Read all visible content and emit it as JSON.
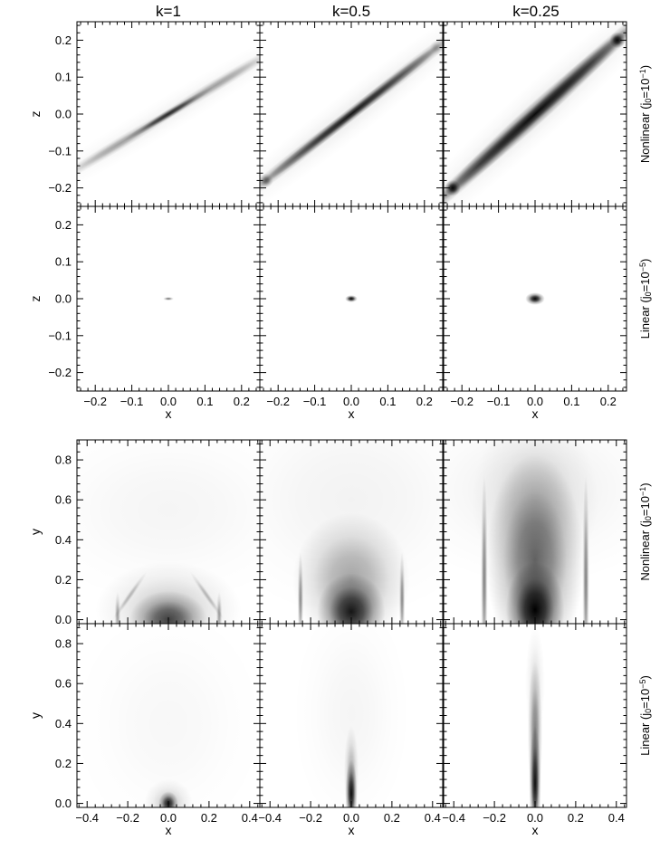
{
  "columns": [
    "k=1",
    "k=0.5",
    "k=0.25"
  ],
  "colors": {
    "ink": "#000000",
    "background": "#ffffff"
  },
  "row_labels": {
    "nonlinear": [
      "Nonlinear (j",
      "0",
      "=10",
      "−1",
      ")"
    ],
    "linear": [
      "Linear (j",
      "0",
      "=10",
      "−5",
      ")"
    ]
  },
  "chart_data": [
    {
      "type": "heatmap",
      "group": "x-z plane",
      "xlabel": "x",
      "ylabel": "z",
      "xlim": [
        -0.25,
        0.25
      ],
      "ylim": [
        -0.25,
        0.25
      ],
      "xticks": [
        -0.2,
        -0.1,
        0.0,
        0.1,
        0.2
      ],
      "xtick_labels": [
        "−0.2",
        "−0.1",
        "0.0",
        "0.1",
        "0.2"
      ],
      "yticks": [
        -0.2,
        -0.1,
        0.0,
        0.1,
        0.2
      ],
      "ytick_labels": [
        "−0.2",
        "−0.1",
        "0.0",
        "0.1",
        "0.2"
      ],
      "colormap": "white-to-black (grayscale)",
      "grid": false,
      "rows": [
        {
          "label_key": "nonlinear",
          "panels": [
            {
              "column": "k=1",
              "feature": "thin dark diagonal sheet along z = 0.6x, densest near origin",
              "blobs": [
                {
                  "x": -0.13,
                  "y": -0.078,
                  "sx": 0.1,
                  "sy": 0.007,
                  "angle": 31,
                  "amp": 0.35
                },
                {
                  "x": 0.0,
                  "y": 0.0,
                  "sx": 0.06,
                  "sy": 0.0045,
                  "angle": 31,
                  "amp": 0.8
                },
                {
                  "x": 0.13,
                  "y": 0.078,
                  "sx": 0.1,
                  "sy": 0.007,
                  "angle": 31,
                  "amp": 0.35
                },
                {
                  "x": 0.0,
                  "y": 0.0,
                  "sx": 0.24,
                  "sy": 0.02,
                  "angle": 31,
                  "amp": 0.05
                }
              ]
            },
            {
              "column": "k=0.5",
              "feature": "dark diagonal sheet reaching the box corners",
              "blobs": [
                {
                  "x": 0.0,
                  "y": 0.0,
                  "sx": 0.13,
                  "sy": 0.007,
                  "angle": 38,
                  "amp": 0.9
                },
                {
                  "x": -0.15,
                  "y": -0.115,
                  "sx": 0.1,
                  "sy": 0.008,
                  "angle": 38,
                  "amp": 0.45
                },
                {
                  "x": 0.15,
                  "y": 0.115,
                  "sx": 0.1,
                  "sy": 0.008,
                  "angle": 38,
                  "amp": 0.45
                },
                {
                  "x": -0.233,
                  "y": -0.18,
                  "sx": 0.008,
                  "sy": 0.008,
                  "angle": 0,
                  "amp": 0.5
                },
                {
                  "x": 0.233,
                  "y": 0.18,
                  "sx": 0.008,
                  "sy": 0.008,
                  "angle": 0,
                  "amp": 0.2
                },
                {
                  "x": 0.0,
                  "y": 0.0,
                  "sx": 0.24,
                  "sy": 0.025,
                  "angle": 38,
                  "amp": 0.07
                }
              ]
            },
            {
              "column": "k=0.25",
              "feature": "thick dark diagonal band with dark spots at both corners",
              "blobs": [
                {
                  "x": 0.0,
                  "y": 0.0,
                  "sx": 0.15,
                  "sy": 0.012,
                  "angle": 42,
                  "amp": 0.95
                },
                {
                  "x": -0.15,
                  "y": -0.135,
                  "sx": 0.11,
                  "sy": 0.01,
                  "angle": 42,
                  "amp": 0.6
                },
                {
                  "x": 0.15,
                  "y": 0.135,
                  "sx": 0.11,
                  "sy": 0.01,
                  "angle": 42,
                  "amp": 0.6
                },
                {
                  "x": -0.225,
                  "y": -0.2,
                  "sx": 0.009,
                  "sy": 0.009,
                  "angle": 0,
                  "amp": 0.95
                },
                {
                  "x": 0.225,
                  "y": 0.2,
                  "sx": 0.009,
                  "sy": 0.009,
                  "angle": 0,
                  "amp": 0.95
                },
                {
                  "x": 0.0,
                  "y": 0.0,
                  "sx": 0.26,
                  "sy": 0.03,
                  "angle": 42,
                  "amp": 0.08
                }
              ]
            }
          ]
        },
        {
          "label_key": "linear",
          "panels": [
            {
              "column": "k=1",
              "feature": "tiny faint spot at origin",
              "blobs": [
                {
                  "x": 0.0,
                  "y": 0.0,
                  "sx": 0.006,
                  "sy": 0.002,
                  "angle": 0,
                  "amp": 0.55
                }
              ]
            },
            {
              "column": "k=0.5",
              "feature": "small dark spot at origin",
              "blobs": [
                {
                  "x": 0.0,
                  "y": 0.0,
                  "sx": 0.007,
                  "sy": 0.004,
                  "angle": 0,
                  "amp": 1.0
                }
              ]
            },
            {
              "column": "k=0.25",
              "feature": "larger dark spot at origin",
              "blobs": [
                {
                  "x": 0.0,
                  "y": 0.0,
                  "sx": 0.011,
                  "sy": 0.007,
                  "angle": 0,
                  "amp": 1.0
                }
              ]
            }
          ]
        }
      ]
    },
    {
      "type": "heatmap",
      "group": "x-y plane",
      "xlabel": "x",
      "ylabel": "y",
      "xlim": [
        -0.45,
        0.45
      ],
      "ylim": [
        -0.02,
        0.9
      ],
      "xticks": [
        -0.4,
        -0.2,
        0.0,
        0.2,
        0.4
      ],
      "xtick_labels": [
        "−0.4",
        "−0.2",
        "0.0",
        "0.2",
        "0.4"
      ],
      "yticks": [
        0.0,
        0.2,
        0.4,
        0.6,
        0.8
      ],
      "ytick_labels": [
        "0.0",
        "0.2",
        "0.4",
        "0.6",
        "0.8"
      ],
      "colormap": "white-to-black (grayscale)",
      "grid": false,
      "rows": [
        {
          "label_key": "nonlinear",
          "panels": [
            {
              "column": "k=1",
              "feature": "dome-shaped dark region at base with faint arc outline",
              "blobs": [
                {
                  "x": 0.0,
                  "y": 0.0,
                  "sx": 0.08,
                  "sy": 0.06,
                  "angle": 0,
                  "amp": 0.7
                },
                {
                  "x": 0.0,
                  "y": 0.05,
                  "sx": 0.15,
                  "sy": 0.1,
                  "angle": 0,
                  "amp": 0.2
                },
                {
                  "x": -0.25,
                  "y": 0.02,
                  "sx": 0.006,
                  "sy": 0.05,
                  "angle": 0,
                  "amp": 0.35
                },
                {
                  "x": 0.25,
                  "y": 0.02,
                  "sx": 0.006,
                  "sy": 0.05,
                  "angle": 0,
                  "amp": 0.35
                },
                {
                  "x": -0.19,
                  "y": 0.12,
                  "sx": 0.06,
                  "sy": 0.006,
                  "angle": 55,
                  "amp": 0.25
                },
                {
                  "x": 0.19,
                  "y": 0.12,
                  "sx": 0.06,
                  "sy": 0.006,
                  "angle": -55,
                  "amp": 0.25
                },
                {
                  "x": 0.0,
                  "y": 0.55,
                  "sx": 0.3,
                  "sy": 0.2,
                  "angle": 0,
                  "amp": 0.04
                }
              ]
            },
            {
              "column": "k=0.5",
              "feature": "dark core at base, gray plume, arched streaks near x = ±0.25",
              "blobs": [
                {
                  "x": 0.0,
                  "y": 0.04,
                  "sx": 0.07,
                  "sy": 0.08,
                  "angle": 0,
                  "amp": 0.9
                },
                {
                  "x": 0.0,
                  "y": 0.2,
                  "sx": 0.12,
                  "sy": 0.14,
                  "angle": 0,
                  "amp": 0.35
                },
                {
                  "x": -0.25,
                  "y": 0.1,
                  "sx": 0.006,
                  "sy": 0.1,
                  "angle": 0,
                  "amp": 0.45
                },
                {
                  "x": 0.25,
                  "y": 0.1,
                  "sx": 0.006,
                  "sy": 0.1,
                  "angle": 0,
                  "amp": 0.45
                },
                {
                  "x": 0.0,
                  "y": 0.6,
                  "sx": 0.3,
                  "sy": 0.25,
                  "angle": 0,
                  "amp": 0.05
                }
              ]
            },
            {
              "column": "k=0.25",
              "feature": "tall dark column from base to y~0.6, vertical streaks near x = ±0.25",
              "blobs": [
                {
                  "x": 0.0,
                  "y": 0.05,
                  "sx": 0.06,
                  "sy": 0.1,
                  "angle": 0,
                  "amp": 1.0
                },
                {
                  "x": 0.0,
                  "y": 0.3,
                  "sx": 0.1,
                  "sy": 0.22,
                  "angle": 0,
                  "amp": 0.6
                },
                {
                  "x": 0.0,
                  "y": 0.6,
                  "sx": 0.13,
                  "sy": 0.18,
                  "angle": 0,
                  "amp": 0.15
                },
                {
                  "x": -0.25,
                  "y": 0.2,
                  "sx": 0.007,
                  "sy": 0.22,
                  "angle": 0,
                  "amp": 0.5
                },
                {
                  "x": 0.25,
                  "y": 0.2,
                  "sx": 0.007,
                  "sy": 0.22,
                  "angle": 0,
                  "amp": 0.5
                },
                {
                  "x": 0.0,
                  "y": 0.65,
                  "sx": 0.3,
                  "sy": 0.2,
                  "angle": 0,
                  "amp": 0.06
                }
              ]
            }
          ]
        },
        {
          "label_key": "linear",
          "panels": [
            {
              "column": "k=1",
              "feature": "small dark semicircle at base origin",
              "blobs": [
                {
                  "x": 0.0,
                  "y": 0.0,
                  "sx": 0.02,
                  "sy": 0.025,
                  "angle": 0,
                  "amp": 0.9
                },
                {
                  "x": 0.0,
                  "y": 0.0,
                  "sx": 0.05,
                  "sy": 0.05,
                  "angle": 0,
                  "amp": 0.2
                },
                {
                  "x": 0.0,
                  "y": 0.4,
                  "sx": 0.2,
                  "sy": 0.25,
                  "angle": 0,
                  "amp": 0.03
                }
              ]
            },
            {
              "column": "k=0.5",
              "feature": "thin dark vertical jet to y~0.2",
              "blobs": [
                {
                  "x": 0.0,
                  "y": 0.05,
                  "sx": 0.012,
                  "sy": 0.07,
                  "angle": 0,
                  "amp": 0.95
                },
                {
                  "x": 0.0,
                  "y": 0.15,
                  "sx": 0.015,
                  "sy": 0.1,
                  "angle": 0,
                  "amp": 0.3
                },
                {
                  "x": 0.0,
                  "y": 0.45,
                  "sx": 0.12,
                  "sy": 0.25,
                  "angle": 0,
                  "amp": 0.04
                }
              ]
            },
            {
              "column": "k=0.25",
              "feature": "long thin dark vertical jet to y~0.5",
              "blobs": [
                {
                  "x": 0.0,
                  "y": 0.1,
                  "sx": 0.012,
                  "sy": 0.12,
                  "angle": 0,
                  "amp": 0.95
                },
                {
                  "x": 0.0,
                  "y": 0.35,
                  "sx": 0.015,
                  "sy": 0.15,
                  "angle": 0,
                  "amp": 0.5
                },
                {
                  "x": 0.0,
                  "y": 0.6,
                  "sx": 0.02,
                  "sy": 0.12,
                  "angle": 0,
                  "amp": 0.12
                }
              ]
            }
          ]
        }
      ]
    }
  ]
}
